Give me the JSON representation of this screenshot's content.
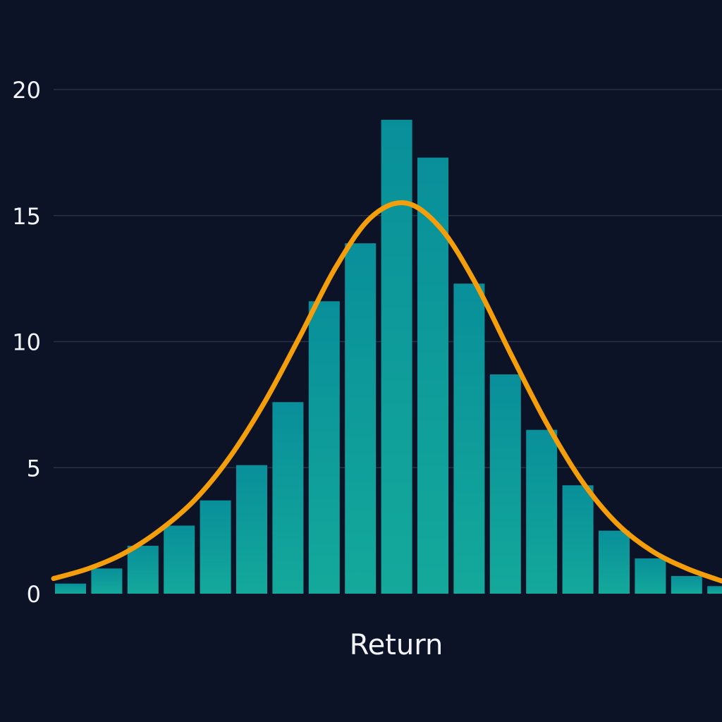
{
  "chart_data": {
    "type": "bar",
    "xlabel": "Return",
    "ylabel": "",
    "ylim": [
      0,
      20
    ],
    "yticks": [
      0,
      5,
      10,
      15,
      20
    ],
    "grid": true,
    "values": [
      0.4,
      1.0,
      1.9,
      2.7,
      3.7,
      5.1,
      7.6,
      11.6,
      13.9,
      18.8,
      17.3,
      12.3,
      8.7,
      6.5,
      4.3,
      2.5,
      1.4,
      0.7,
      0.3
    ],
    "series": [
      {
        "name": "",
        "type": "line",
        "x": [
          0,
          1,
          2,
          3,
          4,
          5,
          6,
          7,
          8,
          9,
          10,
          11,
          12,
          13,
          14,
          15,
          16,
          17,
          18,
          19
        ],
        "y": [
          0.6,
          1.0,
          1.6,
          2.5,
          3.7,
          5.4,
          7.6,
          10.2,
          12.9,
          14.9,
          15.5,
          14.5,
          12.3,
          9.5,
          6.8,
          4.5,
          2.8,
          1.7,
          1.0,
          0.5
        ]
      }
    ],
    "colors": {
      "background": "#0c1327",
      "bar_top": "#098f9a",
      "bar_bottom": "#14a99b",
      "curve": "#f59e0b",
      "grid": "#2a3246",
      "text": "#f2f4f8"
    }
  }
}
